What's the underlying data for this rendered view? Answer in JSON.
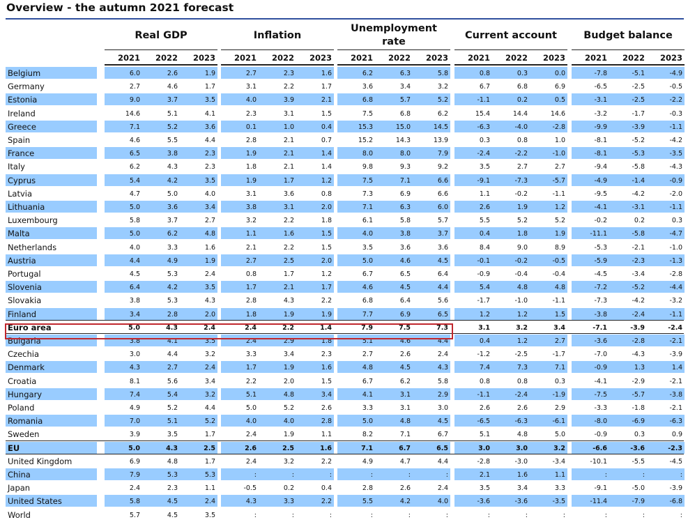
{
  "title": "Overview - the autumn 2021 forecast",
  "groups": [
    {
      "lines": [
        "Real GDP"
      ]
    },
    {
      "lines": [
        "Inflation"
      ]
    },
    {
      "lines": [
        "Unemployment",
        "rate"
      ]
    },
    {
      "lines": [
        "Current account"
      ]
    },
    {
      "lines": [
        "Budget balance"
      ]
    }
  ],
  "years": [
    "2021",
    "2022",
    "2023"
  ],
  "rows": [
    {
      "label": "Belgium",
      "values": [
        "6.0",
        "2.6",
        "1.9",
        "2.7",
        "2.3",
        "1.6",
        "6.2",
        "6.3",
        "5.8",
        "0.8",
        "0.3",
        "0.0",
        "-7.8",
        "-5.1",
        "-4.9"
      ],
      "shade": true,
      "bold": false
    },
    {
      "label": "Germany",
      "values": [
        "2.7",
        "4.6",
        "1.7",
        "3.1",
        "2.2",
        "1.7",
        "3.6",
        "3.4",
        "3.2",
        "6.7",
        "6.8",
        "6.9",
        "-6.5",
        "-2.5",
        "-0.5"
      ],
      "shade": false,
      "bold": false
    },
    {
      "label": "Estonia",
      "values": [
        "9.0",
        "3.7",
        "3.5",
        "4.0",
        "3.9",
        "2.1",
        "6.8",
        "5.7",
        "5.2",
        "-1.1",
        "0.2",
        "0.5",
        "-3.1",
        "-2.5",
        "-2.2"
      ],
      "shade": true,
      "bold": false
    },
    {
      "label": "Ireland",
      "values": [
        "14.6",
        "5.1",
        "4.1",
        "2.3",
        "3.1",
        "1.5",
        "7.5",
        "6.8",
        "6.2",
        "15.4",
        "14.4",
        "14.6",
        "-3.2",
        "-1.7",
        "-0.3"
      ],
      "shade": false,
      "bold": false
    },
    {
      "label": "Greece",
      "values": [
        "7.1",
        "5.2",
        "3.6",
        "0.1",
        "1.0",
        "0.4",
        "15.3",
        "15.0",
        "14.5",
        "-6.3",
        "-4.0",
        "-2.8",
        "-9.9",
        "-3.9",
        "-1.1"
      ],
      "shade": true,
      "bold": false
    },
    {
      "label": "Spain",
      "values": [
        "4.6",
        "5.5",
        "4.4",
        "2.8",
        "2.1",
        "0.7",
        "15.2",
        "14.3",
        "13.9",
        "0.3",
        "0.8",
        "1.0",
        "-8.1",
        "-5.2",
        "-4.2"
      ],
      "shade": false,
      "bold": false
    },
    {
      "label": "France",
      "values": [
        "6.5",
        "3.8",
        "2.3",
        "1.9",
        "2.1",
        "1.4",
        "8.0",
        "8.0",
        "7.9",
        "-2.4",
        "-2.2",
        "-1.0",
        "-8.1",
        "-5.3",
        "-3.5"
      ],
      "shade": true,
      "bold": false
    },
    {
      "label": "Italy",
      "values": [
        "6.2",
        "4.3",
        "2.3",
        "1.8",
        "2.1",
        "1.4",
        "9.8",
        "9.3",
        "9.2",
        "3.5",
        "2.7",
        "2.7",
        "-9.4",
        "-5.8",
        "-4.3"
      ],
      "shade": false,
      "bold": false
    },
    {
      "label": "Cyprus",
      "values": [
        "5.4",
        "4.2",
        "3.5",
        "1.9",
        "1.7",
        "1.2",
        "7.5",
        "7.1",
        "6.6",
        "-9.1",
        "-7.3",
        "-5.7",
        "-4.9",
        "-1.4",
        "-0.9"
      ],
      "shade": true,
      "bold": false
    },
    {
      "label": "Latvia",
      "values": [
        "4.7",
        "5.0",
        "4.0",
        "3.1",
        "3.6",
        "0.8",
        "7.3",
        "6.9",
        "6.6",
        "1.1",
        "-0.2",
        "-1.1",
        "-9.5",
        "-4.2",
        "-2.0"
      ],
      "shade": false,
      "bold": false
    },
    {
      "label": "Lithuania",
      "values": [
        "5.0",
        "3.6",
        "3.4",
        "3.8",
        "3.1",
        "2.0",
        "7.1",
        "6.3",
        "6.0",
        "2.6",
        "1.9",
        "1.2",
        "-4.1",
        "-3.1",
        "-1.1"
      ],
      "shade": true,
      "bold": false
    },
    {
      "label": "Luxembourg",
      "values": [
        "5.8",
        "3.7",
        "2.7",
        "3.2",
        "2.2",
        "1.8",
        "6.1",
        "5.8",
        "5.7",
        "5.5",
        "5.2",
        "5.2",
        "-0.2",
        "0.2",
        "0.3"
      ],
      "shade": false,
      "bold": false
    },
    {
      "label": "Malta",
      "values": [
        "5.0",
        "6.2",
        "4.8",
        "1.1",
        "1.6",
        "1.5",
        "4.0",
        "3.8",
        "3.7",
        "0.4",
        "1.8",
        "1.9",
        "-11.1",
        "-5.8",
        "-4.7"
      ],
      "shade": true,
      "bold": false
    },
    {
      "label": "Netherlands",
      "values": [
        "4.0",
        "3.3",
        "1.6",
        "2.1",
        "2.2",
        "1.5",
        "3.5",
        "3.6",
        "3.6",
        "8.4",
        "9.0",
        "8.9",
        "-5.3",
        "-2.1",
        "-1.0"
      ],
      "shade": false,
      "bold": false
    },
    {
      "label": "Austria",
      "values": [
        "4.4",
        "4.9",
        "1.9",
        "2.7",
        "2.5",
        "2.0",
        "5.0",
        "4.6",
        "4.5",
        "-0.1",
        "-0.2",
        "-0.5",
        "-5.9",
        "-2.3",
        "-1.3"
      ],
      "shade": true,
      "bold": false
    },
    {
      "label": "Portugal",
      "values": [
        "4.5",
        "5.3",
        "2.4",
        "0.8",
        "1.7",
        "1.2",
        "6.7",
        "6.5",
        "6.4",
        "-0.9",
        "-0.4",
        "-0.4",
        "-4.5",
        "-3.4",
        "-2.8"
      ],
      "shade": false,
      "bold": false
    },
    {
      "label": "Slovenia",
      "values": [
        "6.4",
        "4.2",
        "3.5",
        "1.7",
        "2.1",
        "1.7",
        "4.6",
        "4.5",
        "4.4",
        "5.4",
        "4.8",
        "4.8",
        "-7.2",
        "-5.2",
        "-4.4"
      ],
      "shade": true,
      "bold": false
    },
    {
      "label": "Slovakia",
      "values": [
        "3.8",
        "5.3",
        "4.3",
        "2.8",
        "4.3",
        "2.2",
        "6.8",
        "6.4",
        "5.6",
        "-1.7",
        "-1.0",
        "-1.1",
        "-7.3",
        "-4.2",
        "-3.2"
      ],
      "shade": false,
      "bold": false
    },
    {
      "label": "Finland",
      "values": [
        "3.4",
        "2.8",
        "2.0",
        "1.8",
        "1.9",
        "1.9",
        "7.7",
        "6.9",
        "6.5",
        "1.2",
        "1.2",
        "1.5",
        "-3.8",
        "-2.4",
        "-1.1"
      ],
      "shade": true,
      "bold": false
    },
    {
      "label": "Euro area",
      "values": [
        "5.0",
        "4.3",
        "2.4",
        "2.4",
        "2.2",
        "1.4",
        "7.9",
        "7.5",
        "7.3",
        "3.1",
        "3.2",
        "3.4",
        "-7.1",
        "-3.9",
        "-2.4"
      ],
      "shade": false,
      "bold": true
    },
    {
      "label": "Bulgaria",
      "values": [
        "3.8",
        "4.1",
        "3.5",
        "2.4",
        "2.9",
        "1.8",
        "5.1",
        "4.6",
        "4.4",
        "0.4",
        "1.2",
        "2.7",
        "-3.6",
        "-2.8",
        "-2.1"
      ],
      "shade": true,
      "bold": false
    },
    {
      "label": "Czechia",
      "values": [
        "3.0",
        "4.4",
        "3.2",
        "3.3",
        "3.4",
        "2.3",
        "2.7",
        "2.6",
        "2.4",
        "-1.2",
        "-2.5",
        "-1.7",
        "-7.0",
        "-4.3",
        "-3.9"
      ],
      "shade": false,
      "bold": false
    },
    {
      "label": "Denmark",
      "values": [
        "4.3",
        "2.7",
        "2.4",
        "1.7",
        "1.9",
        "1.6",
        "4.8",
        "4.5",
        "4.3",
        "7.4",
        "7.3",
        "7.1",
        "-0.9",
        "1.3",
        "1.4"
      ],
      "shade": true,
      "bold": false
    },
    {
      "label": "Croatia",
      "values": [
        "8.1",
        "5.6",
        "3.4",
        "2.2",
        "2.0",
        "1.5",
        "6.7",
        "6.2",
        "5.8",
        "0.8",
        "0.8",
        "0.3",
        "-4.1",
        "-2.9",
        "-2.1"
      ],
      "shade": false,
      "bold": false
    },
    {
      "label": "Hungary",
      "values": [
        "7.4",
        "5.4",
        "3.2",
        "5.1",
        "4.8",
        "3.4",
        "4.1",
        "3.1",
        "2.9",
        "-1.1",
        "-2.4",
        "-1.9",
        "-7.5",
        "-5.7",
        "-3.8"
      ],
      "shade": true,
      "bold": false
    },
    {
      "label": "Poland",
      "values": [
        "4.9",
        "5.2",
        "4.4",
        "5.0",
        "5.2",
        "2.6",
        "3.3",
        "3.1",
        "3.0",
        "2.6",
        "2.6",
        "2.9",
        "-3.3",
        "-1.8",
        "-2.1"
      ],
      "shade": false,
      "bold": false
    },
    {
      "label": "Romania",
      "values": [
        "7.0",
        "5.1",
        "5.2",
        "4.0",
        "4.0",
        "2.8",
        "5.0",
        "4.8",
        "4.5",
        "-6.5",
        "-6.3",
        "-6.1",
        "-8.0",
        "-6.9",
        "-6.3"
      ],
      "shade": true,
      "bold": false
    },
    {
      "label": "Sweden",
      "values": [
        "3.9",
        "3.5",
        "1.7",
        "2.4",
        "1.9",
        "1.1",
        "8.2",
        "7.1",
        "6.7",
        "5.1",
        "4.8",
        "5.0",
        "-0.9",
        "0.3",
        "0.9"
      ],
      "shade": false,
      "bold": false
    },
    {
      "label": "EU",
      "values": [
        "5.0",
        "4.3",
        "2.5",
        "2.6",
        "2.5",
        "1.6",
        "7.1",
        "6.7",
        "6.5",
        "3.0",
        "3.0",
        "3.2",
        "-6.6",
        "-3.6",
        "-2.3"
      ],
      "shade": true,
      "bold": true
    },
    {
      "label": "United Kingdom",
      "values": [
        "6.9",
        "4.8",
        "1.7",
        "2.4",
        "3.2",
        "2.2",
        "4.9",
        "4.7",
        "4.4",
        "-2.8",
        "-3.0",
        "-3.4",
        "-10.1",
        "-5.5",
        "-4.5"
      ],
      "shade": false,
      "bold": false
    },
    {
      "label": "China",
      "values": [
        "7.9",
        "5.3",
        "5.3",
        ":",
        ":",
        ":",
        ":",
        ":",
        ":",
        "2.1",
        "1.6",
        "1.1",
        ":",
        ":",
        ":"
      ],
      "shade": true,
      "bold": false
    },
    {
      "label": "Japan",
      "values": [
        "2.4",
        "2.3",
        "1.1",
        "-0.5",
        "0.2",
        "0.4",
        "2.8",
        "2.6",
        "2.4",
        "3.5",
        "3.4",
        "3.3",
        "-9.1",
        "-5.0",
        "-3.9"
      ],
      "shade": false,
      "bold": false
    },
    {
      "label": "United States",
      "values": [
        "5.8",
        "4.5",
        "2.4",
        "4.3",
        "3.3",
        "2.2",
        "5.5",
        "4.2",
        "4.0",
        "-3.6",
        "-3.6",
        "-3.5",
        "-11.4",
        "-7.9",
        "-6.8"
      ],
      "shade": true,
      "bold": false
    },
    {
      "label": "World",
      "values": [
        "5.7",
        "4.5",
        "3.5",
        ":",
        ":",
        ":",
        ":",
        ":",
        ":",
        ":",
        ":",
        ":",
        ":",
        ":",
        ":"
      ],
      "shade": false,
      "bold": false
    }
  ]
}
